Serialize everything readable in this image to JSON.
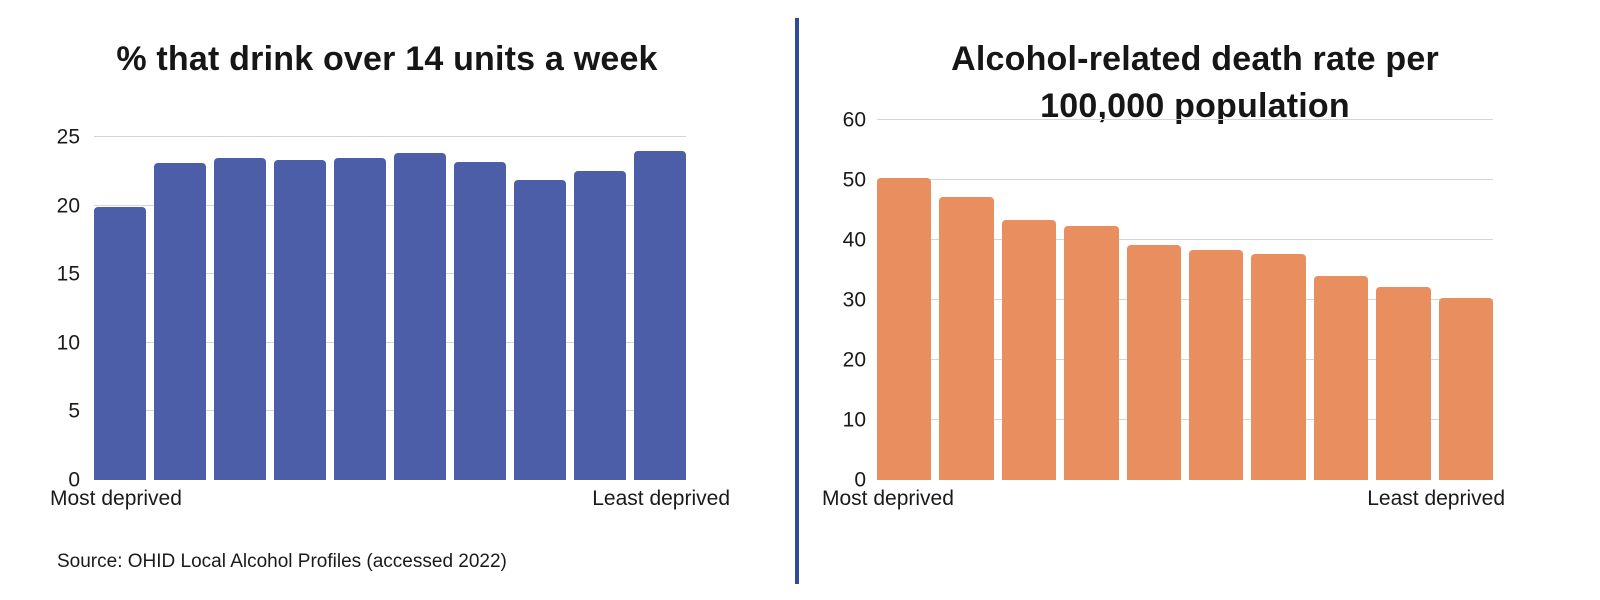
{
  "page": {
    "background": "#ffffff",
    "divider_color": "#2e4a9a"
  },
  "source_note": "Source: OHID Local Alcohol Profiles (accessed 2022)",
  "chart_data": [
    {
      "type": "bar",
      "title": "% that drink over 14 units a week",
      "values": [
        19.9,
        23.1,
        23.5,
        23.3,
        23.5,
        23.8,
        23.2,
        21.9,
        22.5,
        24.0
      ],
      "x_axis_left_label": "Most deprived",
      "x_axis_right_label": "Least deprived",
      "ylim": [
        0,
        25
      ],
      "yticks": [
        0,
        5,
        10,
        15,
        20,
        25
      ],
      "bar_color": "#4d5ea8",
      "grid": true,
      "legend": "none",
      "title_align": "center"
    },
    {
      "type": "bar",
      "title": "Alcohol-related death rate per 100,000 population",
      "values": [
        50.4,
        47.1,
        43.3,
        42.3,
        39.2,
        38.3,
        37.7,
        34.0,
        32.2,
        30.3
      ],
      "x_axis_left_label": "Most deprived",
      "x_axis_right_label": "Least deprived",
      "ylim": [
        0,
        60
      ],
      "yticks": [
        0,
        10,
        20,
        30,
        40,
        50,
        60
      ],
      "bar_color": "#e98e5e",
      "grid": true,
      "legend": "none",
      "title_align": "center"
    }
  ]
}
